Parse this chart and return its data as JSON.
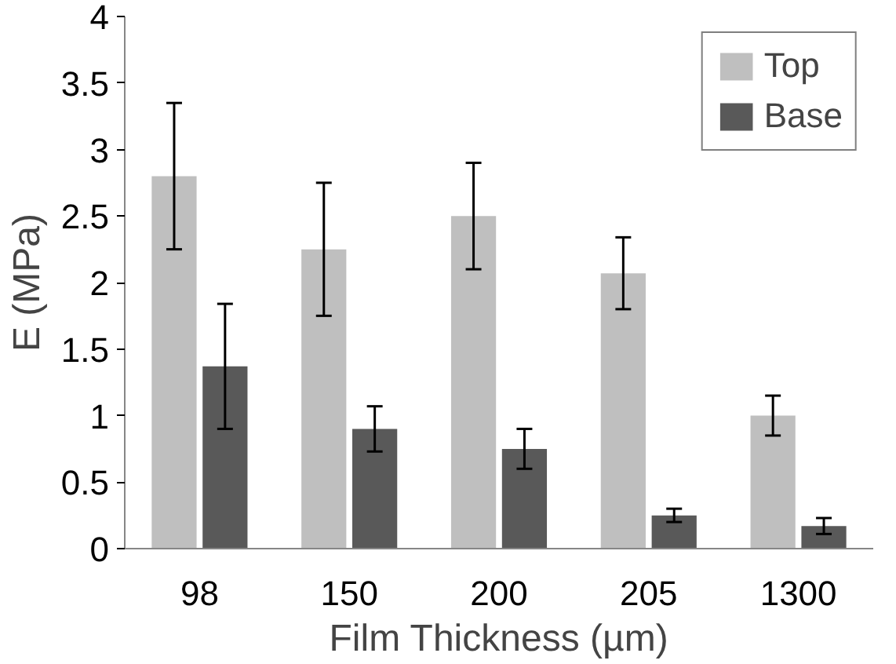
{
  "chart_data": {
    "type": "bar",
    "xlabel": "Film Thickness (µm)",
    "ylabel": "E (MPa)",
    "categories": [
      "98",
      "150",
      "200",
      "205",
      "1300"
    ],
    "series": [
      {
        "name": "Top",
        "color": "#bfbfbf",
        "values": [
          2.8,
          2.25,
          2.5,
          2.07,
          1.0
        ],
        "errors": [
          0.55,
          0.5,
          0.4,
          0.27,
          0.15
        ]
      },
      {
        "name": "Base",
        "color": "#595959",
        "values": [
          1.37,
          0.9,
          0.75,
          0.25,
          0.17
        ],
        "errors": [
          0.47,
          0.17,
          0.15,
          0.05,
          0.06
        ]
      }
    ],
    "ylim": [
      0,
      4
    ],
    "yticks": [
      0,
      0.5,
      1,
      1.5,
      2,
      2.5,
      3,
      3.5,
      4
    ],
    "grid": false,
    "legend": "top right"
  }
}
